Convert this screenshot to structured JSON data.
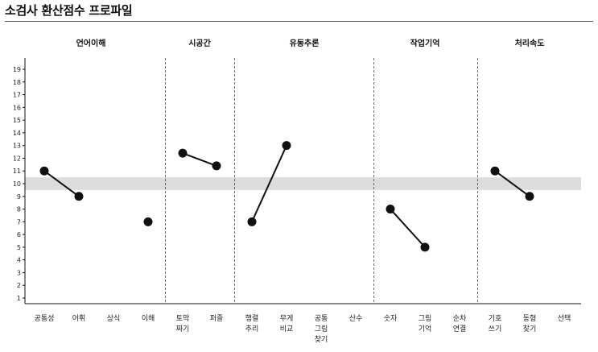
{
  "title": "소검사 환산점수 프로파일",
  "chart_data": {
    "type": "line",
    "ylim": [
      1,
      19
    ],
    "yticks": [
      1,
      2,
      3,
      4,
      5,
      6,
      7,
      8,
      9,
      10,
      11,
      12,
      13,
      14,
      15,
      16,
      17,
      18,
      19
    ],
    "reference_band": [
      9.5,
      10.5
    ],
    "domains": [
      {
        "label": "언어이해",
        "subtests": [
          "공통성",
          "어휘",
          "상식",
          "이해"
        ]
      },
      {
        "label": "시공간",
        "subtests": [
          "토막 짜기",
          "퍼즐"
        ]
      },
      {
        "label": "유동추론",
        "subtests": [
          "행렬 추리",
          "무게 비교",
          "공통 그림 찾기",
          "산수"
        ]
      },
      {
        "label": "작업기억",
        "subtests": [
          "숫자",
          "그림 기억",
          "순차 연결"
        ]
      },
      {
        "label": "처리속도",
        "subtests": [
          "기호 쓰기",
          "동형 찾기",
          "선택"
        ]
      }
    ],
    "points": [
      {
        "subtest": "공통성",
        "value": 11
      },
      {
        "subtest": "어휘",
        "value": 9
      },
      {
        "subtest": "이해",
        "value": 7
      },
      {
        "subtest": "토막 짜기",
        "value": 12.4
      },
      {
        "subtest": "퍼즐",
        "value": 11.4
      },
      {
        "subtest": "행렬 추리",
        "value": 7
      },
      {
        "subtest": "무게 비교",
        "value": 13
      },
      {
        "subtest": "숫자",
        "value": 8
      },
      {
        "subtest": "그림 기억",
        "value": 5
      },
      {
        "subtest": "기호 쓰기",
        "value": 11
      },
      {
        "subtest": "동형 찾기",
        "value": 9
      }
    ],
    "lines": [
      [
        "공통성",
        "어휘"
      ],
      [
        "토막 짜기",
        "퍼즐"
      ],
      [
        "행렬 추리",
        "무게 비교"
      ],
      [
        "숫자",
        "그림 기억"
      ],
      [
        "기호 쓰기",
        "동형 찾기"
      ]
    ]
  }
}
